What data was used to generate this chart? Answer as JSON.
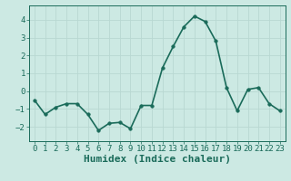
{
  "x": [
    0,
    1,
    2,
    3,
    4,
    5,
    6,
    7,
    8,
    9,
    10,
    11,
    12,
    13,
    14,
    15,
    16,
    17,
    18,
    19,
    20,
    21,
    22,
    23
  ],
  "y": [
    -0.5,
    -1.3,
    -0.9,
    -0.7,
    -0.7,
    -1.3,
    -2.2,
    -1.8,
    -1.75,
    -2.1,
    -0.8,
    -0.8,
    1.3,
    2.5,
    3.6,
    4.2,
    3.9,
    2.8,
    0.2,
    -1.1,
    0.1,
    0.2,
    -0.7,
    -1.1
  ],
  "line_color": "#1a6b5a",
  "marker": "o",
  "markersize": 2.5,
  "linewidth": 1.2,
  "xlabel": "Humidex (Indice chaleur)",
  "xlim": [
    -0.5,
    23.5
  ],
  "ylim": [
    -2.8,
    4.8
  ],
  "yticks": [
    -2,
    -1,
    0,
    1,
    2,
    3,
    4
  ],
  "xticks": [
    0,
    1,
    2,
    3,
    4,
    5,
    6,
    7,
    8,
    9,
    10,
    11,
    12,
    13,
    14,
    15,
    16,
    17,
    18,
    19,
    20,
    21,
    22,
    23
  ],
  "bg_color": "#cce9e3",
  "grid_color": "#b8d8d2",
  "tick_color": "#1a6b5a",
  "label_color": "#1a6b5a",
  "xlabel_fontsize": 8,
  "tick_fontsize": 6.5
}
